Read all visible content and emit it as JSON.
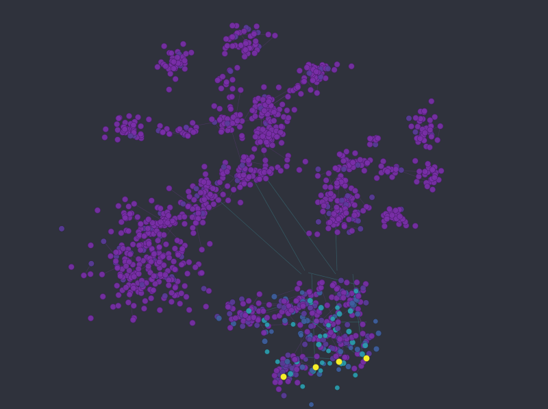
{
  "diagram": {
    "type": "network-graph",
    "background_color": "#2f323c",
    "colormap": "viridis",
    "node_colors": {
      "low": "#7a2fa8",
      "low_outline": "#4a1f6a",
      "mid_low": "#5b3b9a",
      "mid": "#3e5fa0",
      "mid_high": "#2aa0b0",
      "high": "#f5ee2a"
    },
    "edge_color_primary": "#7a3ca0",
    "edge_color_secondary": "#3d8f9a",
    "clusters": [
      {
        "id": "top-center-knot",
        "level": "low"
      },
      {
        "id": "upper-left-blob",
        "level": "low"
      },
      {
        "id": "upper-right-blob",
        "level": "low"
      },
      {
        "id": "left-middle-blob",
        "level": "low"
      },
      {
        "id": "center-spine",
        "level": "low"
      },
      {
        "id": "right-arm",
        "level": "low"
      },
      {
        "id": "right-far-blob",
        "level": "low"
      },
      {
        "id": "right-lower-blob",
        "level": "low"
      },
      {
        "id": "large-left-mass",
        "level": "low"
      },
      {
        "id": "lower-middle-community",
        "level": "mid"
      },
      {
        "id": "bottom-hub",
        "level": "high"
      }
    ]
  }
}
